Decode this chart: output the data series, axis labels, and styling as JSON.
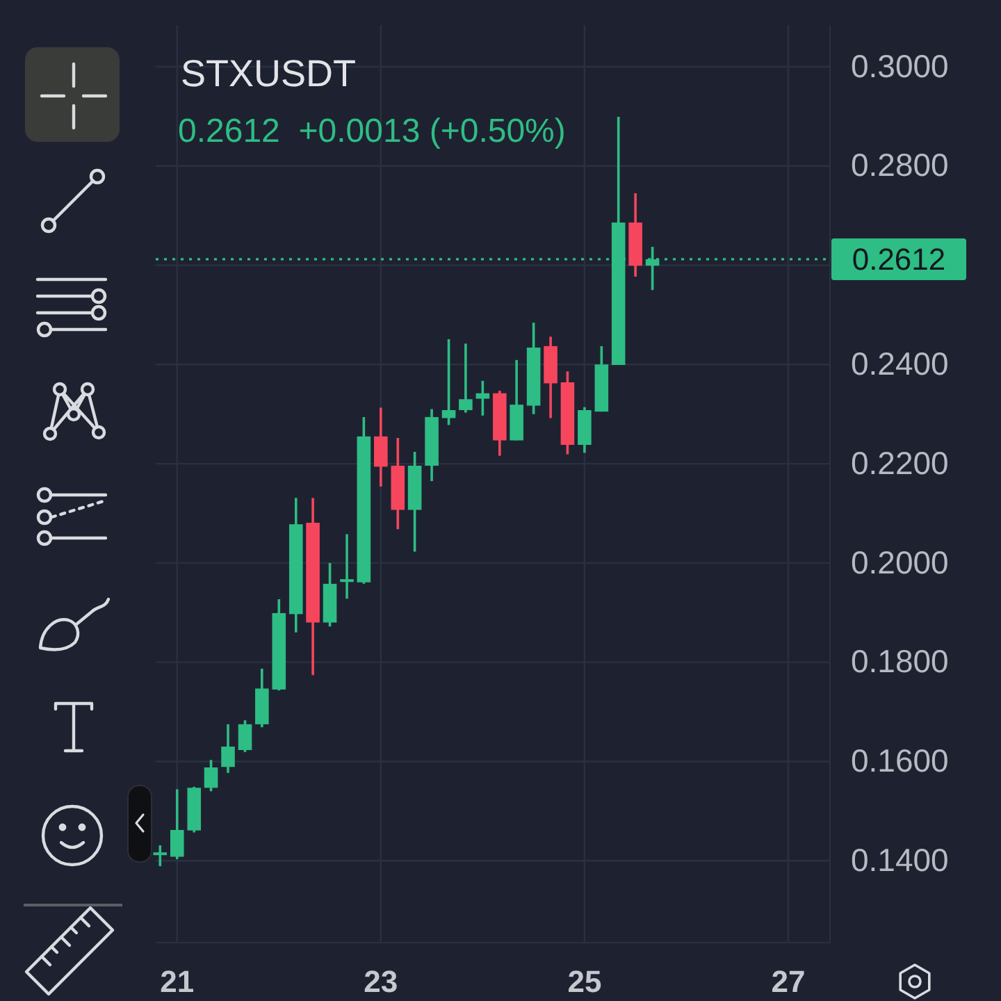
{
  "chart_data": {
    "type": "candlestick",
    "title": "STXUSDT",
    "subtitle": "0.2612  +0.0013 (+0.50%)",
    "x": [
      20.833,
      21,
      21.167,
      21.333,
      21.5,
      21.667,
      21.833,
      22,
      22.167,
      22.333,
      22.5,
      22.667,
      22.833,
      23,
      23.167,
      23.333,
      23.5,
      23.667,
      23.833,
      24,
      24.167,
      24.333,
      24.5,
      24.667,
      24.833,
      25,
      25.167,
      25.333,
      25.5,
      25.667
    ],
    "ohlc": [
      [
        0.1413,
        0.1431,
        0.1389,
        0.1415
      ],
      [
        0.1408,
        0.1544,
        0.1403,
        0.1462
      ],
      [
        0.1461,
        0.1549,
        0.1457,
        0.1547
      ],
      [
        0.1547,
        0.1603,
        0.154,
        0.1588
      ],
      [
        0.1589,
        0.1675,
        0.1577,
        0.163
      ],
      [
        0.1623,
        0.1683,
        0.1619,
        0.1675
      ],
      [
        0.1675,
        0.1787,
        0.1669,
        0.1747
      ],
      [
        0.1745,
        0.1927,
        0.1743,
        0.1899
      ],
      [
        0.1897,
        0.2131,
        0.186,
        0.2078
      ],
      [
        0.2081,
        0.2131,
        0.1774,
        0.188
      ],
      [
        0.188,
        0.2,
        0.1872,
        0.1958
      ],
      [
        0.1963,
        0.2058,
        0.1928,
        0.1966
      ],
      [
        0.1961,
        0.2294,
        0.1958,
        0.2255
      ],
      [
        0.2255,
        0.2313,
        0.2154,
        0.2194
      ],
      [
        0.2196,
        0.2252,
        0.2068,
        0.2107
      ],
      [
        0.2107,
        0.2224,
        0.2023,
        0.2196
      ],
      [
        0.2196,
        0.231,
        0.2165,
        0.2294
      ],
      [
        0.2292,
        0.2451,
        0.2278,
        0.2308
      ],
      [
        0.2308,
        0.2442,
        0.2303,
        0.233
      ],
      [
        0.2331,
        0.2367,
        0.2297,
        0.2342
      ],
      [
        0.2342,
        0.2347,
        0.2216,
        0.2247
      ],
      [
        0.2247,
        0.2409,
        0.2247,
        0.2319
      ],
      [
        0.2317,
        0.2484,
        0.23,
        0.2434
      ],
      [
        0.2437,
        0.2456,
        0.2292,
        0.2362
      ],
      [
        0.2364,
        0.2386,
        0.2219,
        0.2238
      ],
      [
        0.2238,
        0.2314,
        0.2222,
        0.2308
      ],
      [
        0.2305,
        0.2437,
        0.2305,
        0.24
      ],
      [
        0.2399,
        0.2899,
        0.2399,
        0.2686
      ],
      [
        0.2686,
        0.2745,
        0.2577,
        0.2599
      ],
      [
        0.2599,
        0.2637,
        0.255,
        0.2612
      ]
    ],
    "colors": [
      "#2ebd85",
      "#2ebd85",
      "#2ebd85",
      "#2ebd85",
      "#2ebd85",
      "#2ebd85",
      "#2ebd85",
      "#2ebd85",
      "#2ebd85",
      "#f6465d",
      "#2ebd85",
      "#2ebd85",
      "#2ebd85",
      "#f6465d",
      "#f6465d",
      "#2ebd85",
      "#2ebd85",
      "#2ebd85",
      "#2ebd85",
      "#2ebd85",
      "#f6465d",
      "#2ebd85",
      "#2ebd85",
      "#f6465d",
      "#f6465d",
      "#2ebd85",
      "#2ebd85",
      "#2ebd85",
      "#f6465d",
      "#2ebd85"
    ],
    "xlim": [
      20.79,
      27.41
    ],
    "xticks": [
      21,
      23,
      25,
      27
    ],
    "ylim": [
      0.1235,
      0.3084
    ],
    "yticks": [
      {
        "value": 0.14,
        "label": "0.1400"
      },
      {
        "value": 0.16,
        "label": "0.1600"
      },
      {
        "value": 0.18,
        "label": "0.1800"
      },
      {
        "value": 0.2,
        "label": "0.2000"
      },
      {
        "value": 0.22,
        "label": "0.2200"
      },
      {
        "value": 0.24,
        "label": "0.2400"
      },
      {
        "value": 0.26,
        "label": null
      },
      {
        "value": 0.28,
        "label": "0.2800"
      },
      {
        "value": 0.3,
        "label": "0.3000"
      }
    ],
    "grid": true,
    "ref_lines": [
      {
        "axis": "y",
        "value": 0.2612,
        "label": "0.2612",
        "color": "#2ebd85",
        "line_style": "dotted"
      }
    ]
  }
}
